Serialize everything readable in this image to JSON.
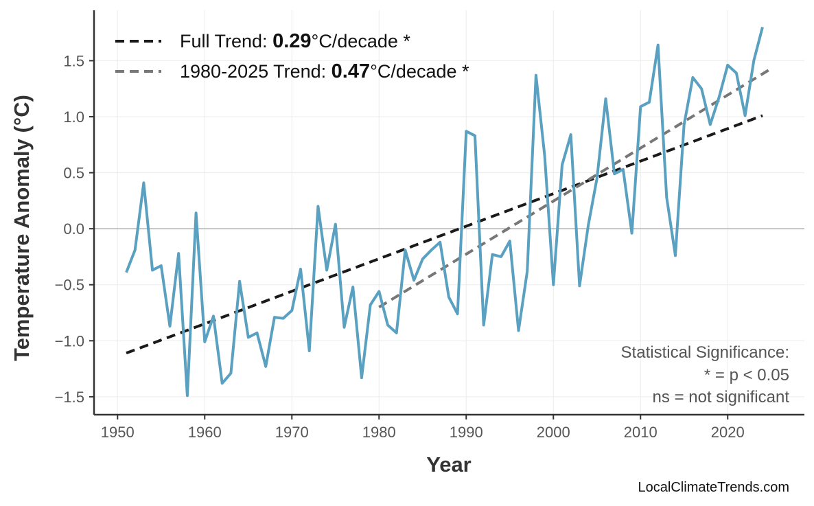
{
  "chart_data": {
    "type": "line",
    "title": "",
    "xlabel": "Year",
    "ylabel": "Temperature Anomaly (°C)",
    "xlim": [
      1947.3,
      2028.8
    ],
    "ylim": [
      -1.66,
      1.95
    ],
    "xticks": [
      1950,
      1960,
      1970,
      1980,
      1990,
      2000,
      2010,
      2020
    ],
    "yticks": [
      -1.5,
      -1.0,
      -0.5,
      0.0,
      0.5,
      1.0,
      1.5
    ],
    "ytick_labels": [
      "−1.5",
      "−1.0",
      "−0.5",
      "0.0",
      "0.5",
      "1.0",
      "1.5"
    ],
    "grid": true,
    "zero_line": true,
    "x": [
      1951,
      1952,
      1953,
      1954,
      1955,
      1956,
      1957,
      1958,
      1959,
      1960,
      1961,
      1962,
      1963,
      1964,
      1965,
      1966,
      1967,
      1968,
      1969,
      1970,
      1971,
      1972,
      1973,
      1974,
      1975,
      1976,
      1977,
      1978,
      1979,
      1980,
      1981,
      1982,
      1983,
      1984,
      1985,
      1986,
      1987,
      1988,
      1989,
      1990,
      1991,
      1992,
      1993,
      1994,
      1995,
      1996,
      1997,
      1998,
      1999,
      2000,
      2001,
      2002,
      2003,
      2004,
      2005,
      2006,
      2007,
      2008,
      2009,
      2010,
      2011,
      2012,
      2013,
      2014,
      2015,
      2016,
      2017,
      2018,
      2019,
      2020,
      2021,
      2022,
      2023,
      2024
    ],
    "series": [
      {
        "color": "#5aa0c0",
        "values": [
          -0.39,
          -0.19,
          0.41,
          -0.37,
          -0.33,
          -0.87,
          -0.22,
          -1.49,
          0.14,
          -1.01,
          -0.78,
          -1.38,
          -1.29,
          -0.47,
          -0.97,
          -0.93,
          -1.23,
          -0.79,
          -0.8,
          -0.73,
          -0.36,
          -1.09,
          0.2,
          -0.37,
          0.04,
          -0.88,
          -0.52,
          -1.33,
          -0.68,
          -0.56,
          -0.86,
          -0.93,
          -0.19,
          -0.46,
          -0.27,
          -0.19,
          -0.12,
          -0.61,
          -0.76,
          0.87,
          0.83,
          -0.86,
          -0.23,
          -0.25,
          -0.11,
          -0.91,
          -0.38,
          1.37,
          0.65,
          -0.5,
          0.57,
          0.84,
          -0.51,
          0.03,
          0.45,
          1.16,
          0.49,
          0.53,
          -0.04,
          1.09,
          1.13,
          1.64,
          0.28,
          -0.24,
          0.93,
          1.35,
          1.25,
          0.93,
          1.17,
          1.46,
          1.39,
          1.01,
          1.5,
          1.8
        ]
      }
    ],
    "trends": [
      {
        "name_prefix": "Full Trend: ",
        "value": "0.29",
        "suffix": "°C/decade *",
        "color": "#1a1a1a",
        "x": [
          1951,
          2024
        ],
        "y": [
          -1.11,
          1.01
        ]
      },
      {
        "name_prefix": "1980-2025 Trend: ",
        "value": "0.47",
        "suffix": "°C/decade *",
        "color": "#777777",
        "x": [
          1980,
          2025
        ],
        "y": [
          -0.7,
          1.43
        ]
      }
    ],
    "legend_position": "top-left",
    "annotation": [
      "Statistical Significance:",
      "* = p < 0.05",
      "ns = not significant"
    ]
  },
  "credit": "LocalClimateTrends.com"
}
